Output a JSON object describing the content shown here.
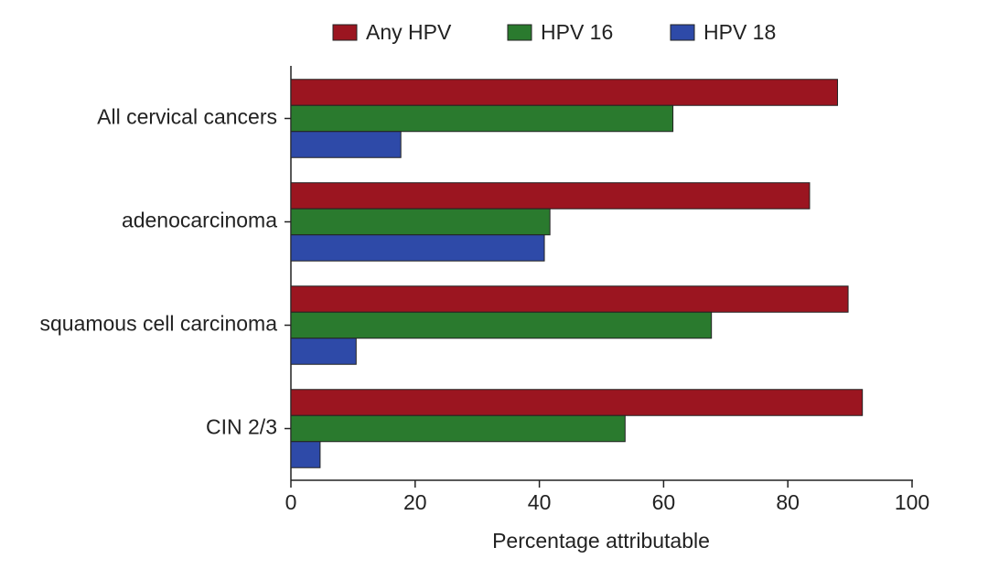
{
  "chart_data": {
    "type": "barh",
    "categories": [
      "All cervical cancers",
      "adenocarcinoma",
      "squamous cell carcinoma",
      "CIN 2/3"
    ],
    "series": [
      {
        "name": "Any HPV",
        "color": "#9b1520",
        "values": [
          88,
          83.5,
          89.7,
          92
        ]
      },
      {
        "name": "HPV 16",
        "color": "#2a7a2e",
        "values": [
          61.5,
          41.7,
          67.7,
          53.8
        ]
      },
      {
        "name": "HPV 18",
        "color": "#2e4aa8",
        "values": [
          17.7,
          40.8,
          10.5,
          4.7
        ]
      }
    ],
    "xlabel": "Percentage attributable",
    "xlim": [
      0,
      100
    ],
    "xticks": [
      0,
      20,
      40,
      60,
      80,
      100
    ],
    "legend": "top"
  }
}
